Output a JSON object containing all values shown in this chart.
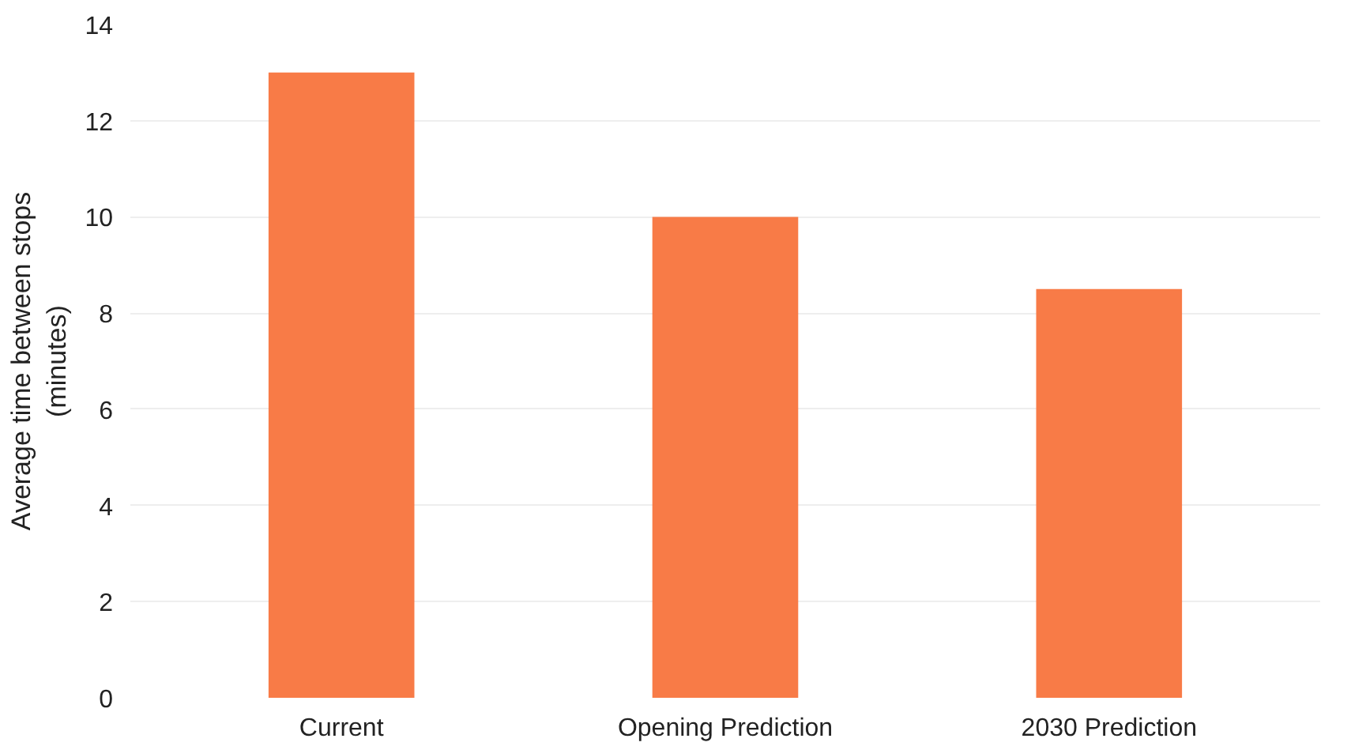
{
  "chart_data": {
    "type": "bar",
    "ylabel": "Average time between stops\n(minutes)",
    "categories": [
      "Current",
      "Opening Prediction",
      "2030 Prediction"
    ],
    "values": [
      13.0,
      10.0,
      8.5
    ],
    "color": "#f87b47",
    "ylim": [
      0,
      14
    ],
    "yticks": [
      0,
      2,
      4,
      6,
      8,
      10,
      12,
      14
    ],
    "grid": "y"
  }
}
